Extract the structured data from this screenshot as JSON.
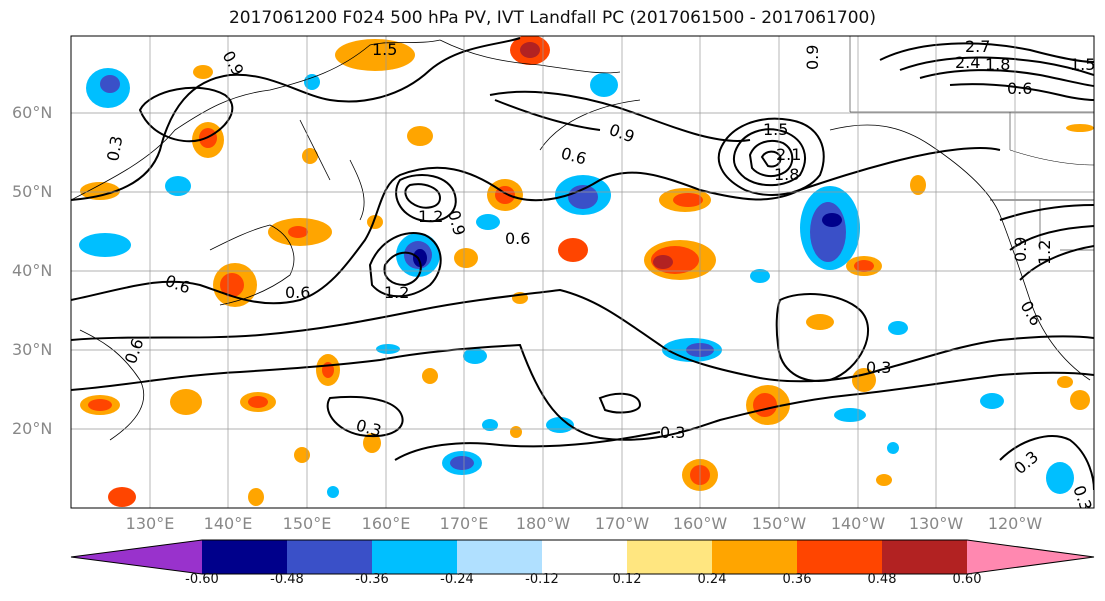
{
  "title": "2017061200 F024 500 hPa PV, IVT Landfall PC (2017061500 - 2017061700)",
  "lat_labels": [
    "60°N",
    "50°N",
    "40°N",
    "30°N",
    "20°N"
  ],
  "lon_labels": [
    "130°E",
    "140°E",
    "150°E",
    "160°E",
    "170°E",
    "180°W",
    "170°W",
    "160°W",
    "150°W",
    "140°W",
    "130°W",
    "120°W"
  ],
  "colorbar": {
    "ticks": [
      "-0.60",
      "-0.48",
      "-0.36",
      "-0.24",
      "-0.12",
      "0.12",
      "0.24",
      "0.36",
      "0.48",
      "0.60"
    ],
    "colors": [
      "#9932cc",
      "#00008b",
      "#3a50c8",
      "#00bfff",
      "#b0e0ff",
      "#ffffff",
      "#ffe680",
      "#ffa500",
      "#ff4500",
      "#b22222",
      "#ff88b0"
    ]
  },
  "contour_labels": [
    "0.9",
    "1.5",
    "0.3",
    "0.6",
    "1.2",
    "0.9",
    "0.6",
    "1.2",
    "0.6",
    "0.9",
    "0.6",
    "1.5",
    "2.1",
    "1.8",
    "0.9",
    "2.7",
    "2.4",
    "1.8",
    "1.5",
    "0.6",
    "0.6",
    "0.9",
    "1.2",
    "0.6",
    "0.3",
    "0.3",
    "0.3",
    "0.3",
    "0.3"
  ]
}
